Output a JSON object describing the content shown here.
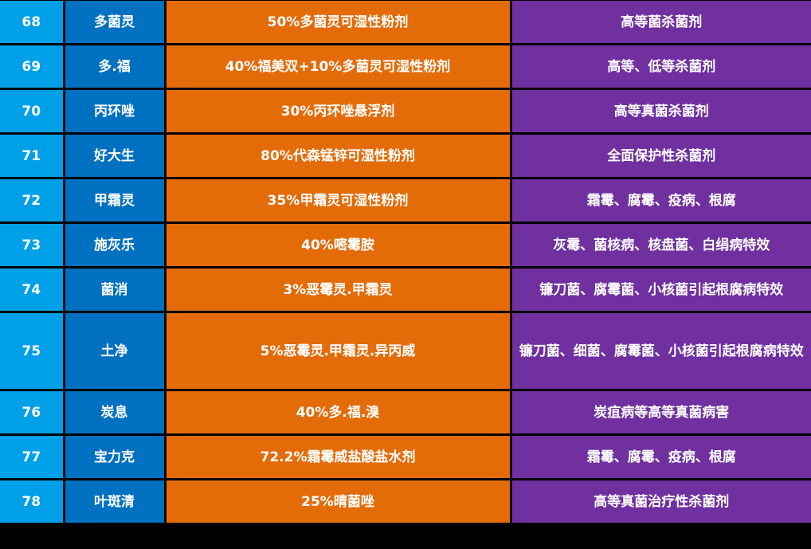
{
  "colors": {
    "col_no": "#00a0e9",
    "col_name": "#0070c0",
    "col_formula": "#e36c09",
    "col_use": "#7030a0"
  },
  "rows": [
    {
      "no": "68",
      "name": "多菌灵",
      "formula": "50%多菌灵可湿性粉剂",
      "use": "高等菌杀菌剂"
    },
    {
      "no": "69",
      "name": "多.福",
      "formula": "40%福美双+10%多菌灵可湿性粉剂",
      "use": "高等、低等杀菌剂"
    },
    {
      "no": "70",
      "name": "丙环唑",
      "formula": "30%丙环唑悬浮剂",
      "use": "高等真菌杀菌剂"
    },
    {
      "no": "71",
      "name": "好大生",
      "formula": "80%代森锰锌可湿性粉剂",
      "use": "全面保护性杀菌剂"
    },
    {
      "no": "72",
      "name": "甲霜灵",
      "formula": "35%甲霜灵可湿性粉剂",
      "use": "霜霉、腐霉、疫病、根腐"
    },
    {
      "no": "73",
      "name": "施灰乐",
      "formula": "40%嘧霉胺",
      "use": "灰霉、菌核病、核盘菌、白绢病特效"
    },
    {
      "no": "74",
      "name": "菌消",
      "formula": "3%恶霉灵.甲霜灵",
      "use": "镰刀菌、腐霉菌、小核菌引起根腐病特效"
    },
    {
      "no": "75",
      "name": "土净",
      "formula": "5%恶霉灵.甲霜灵.异丙威",
      "use": "镰刀菌、细菌、腐霉菌、小核菌引起根腐病特效"
    },
    {
      "no": "76",
      "name": "炭息",
      "formula": "40%多.福.溴",
      "use": "炭疽病等高等真菌病害"
    },
    {
      "no": "77",
      "name": "宝力克",
      "formula": "72.2%霜霉威盐酸盐水剂",
      "use": "霜霉、腐霉、疫病、根腐"
    },
    {
      "no": "78",
      "name": "叶斑清",
      "formula": "25%晴菌唑",
      "use": "高等真菌治疗性杀菌剂"
    }
  ]
}
